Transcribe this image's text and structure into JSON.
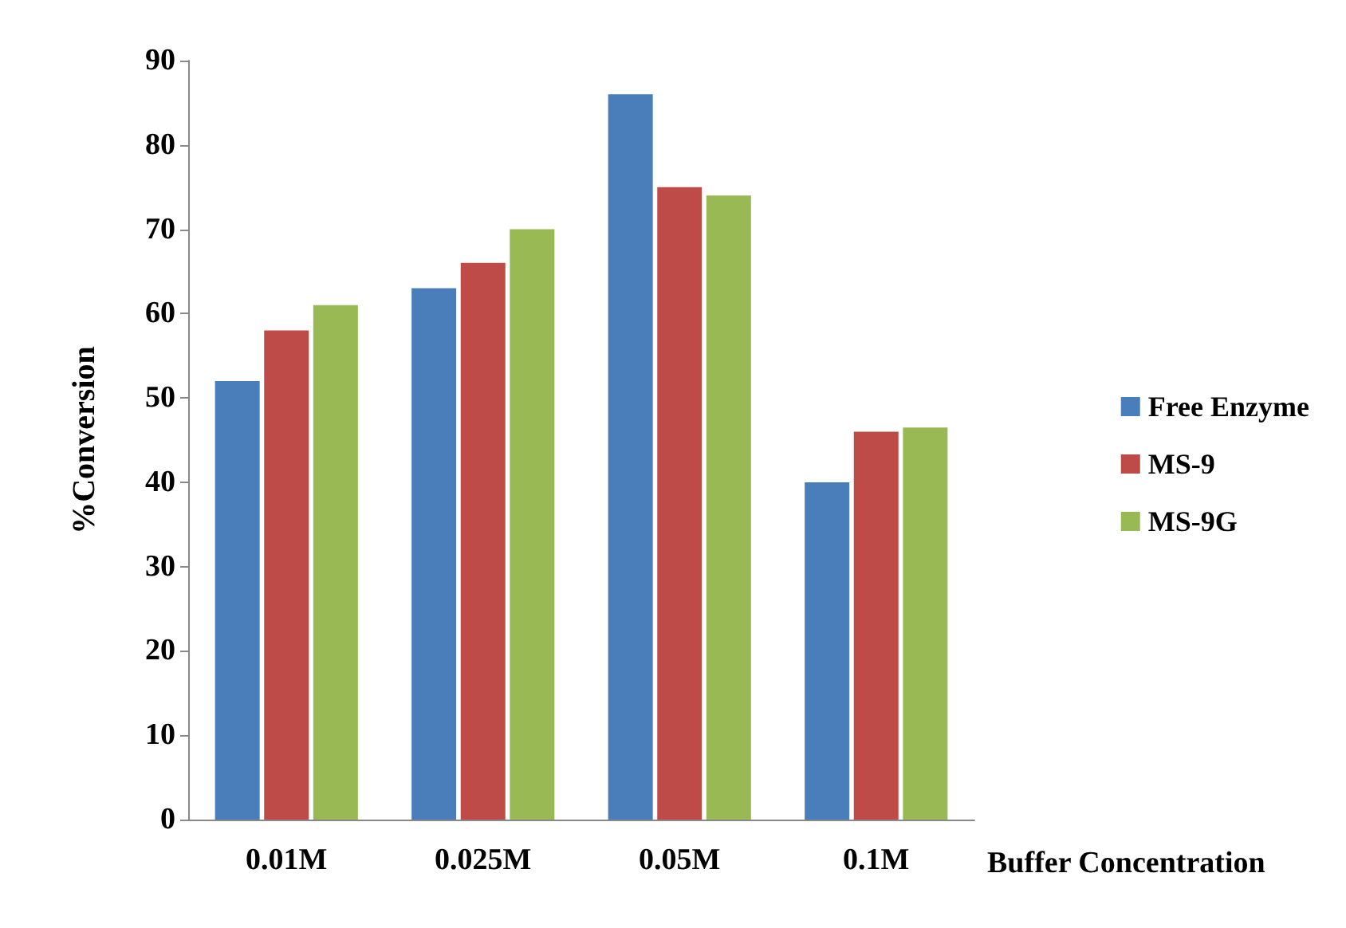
{
  "chart_data": {
    "type": "bar",
    "xlabel": "Buffer Concentration",
    "ylabel": "%Conversion",
    "categories": [
      "0.01M",
      "0.025M",
      "0.05M",
      "0.1M"
    ],
    "series": [
      {
        "name": "Free Enzyme",
        "color": "#4a7ebb",
        "values": [
          52,
          63,
          86,
          40
        ]
      },
      {
        "name": "MS-9",
        "color": "#be4b48",
        "values": [
          58,
          66,
          75,
          46
        ]
      },
      {
        "name": "MS-9G",
        "color": "#98b954",
        "values": [
          61,
          70,
          74,
          46.5
        ]
      }
    ],
    "ylim": [
      0,
      90
    ],
    "yticks": [
      0,
      10,
      20,
      30,
      40,
      50,
      60,
      70,
      80,
      90
    ],
    "grid": false,
    "legend": "right"
  }
}
